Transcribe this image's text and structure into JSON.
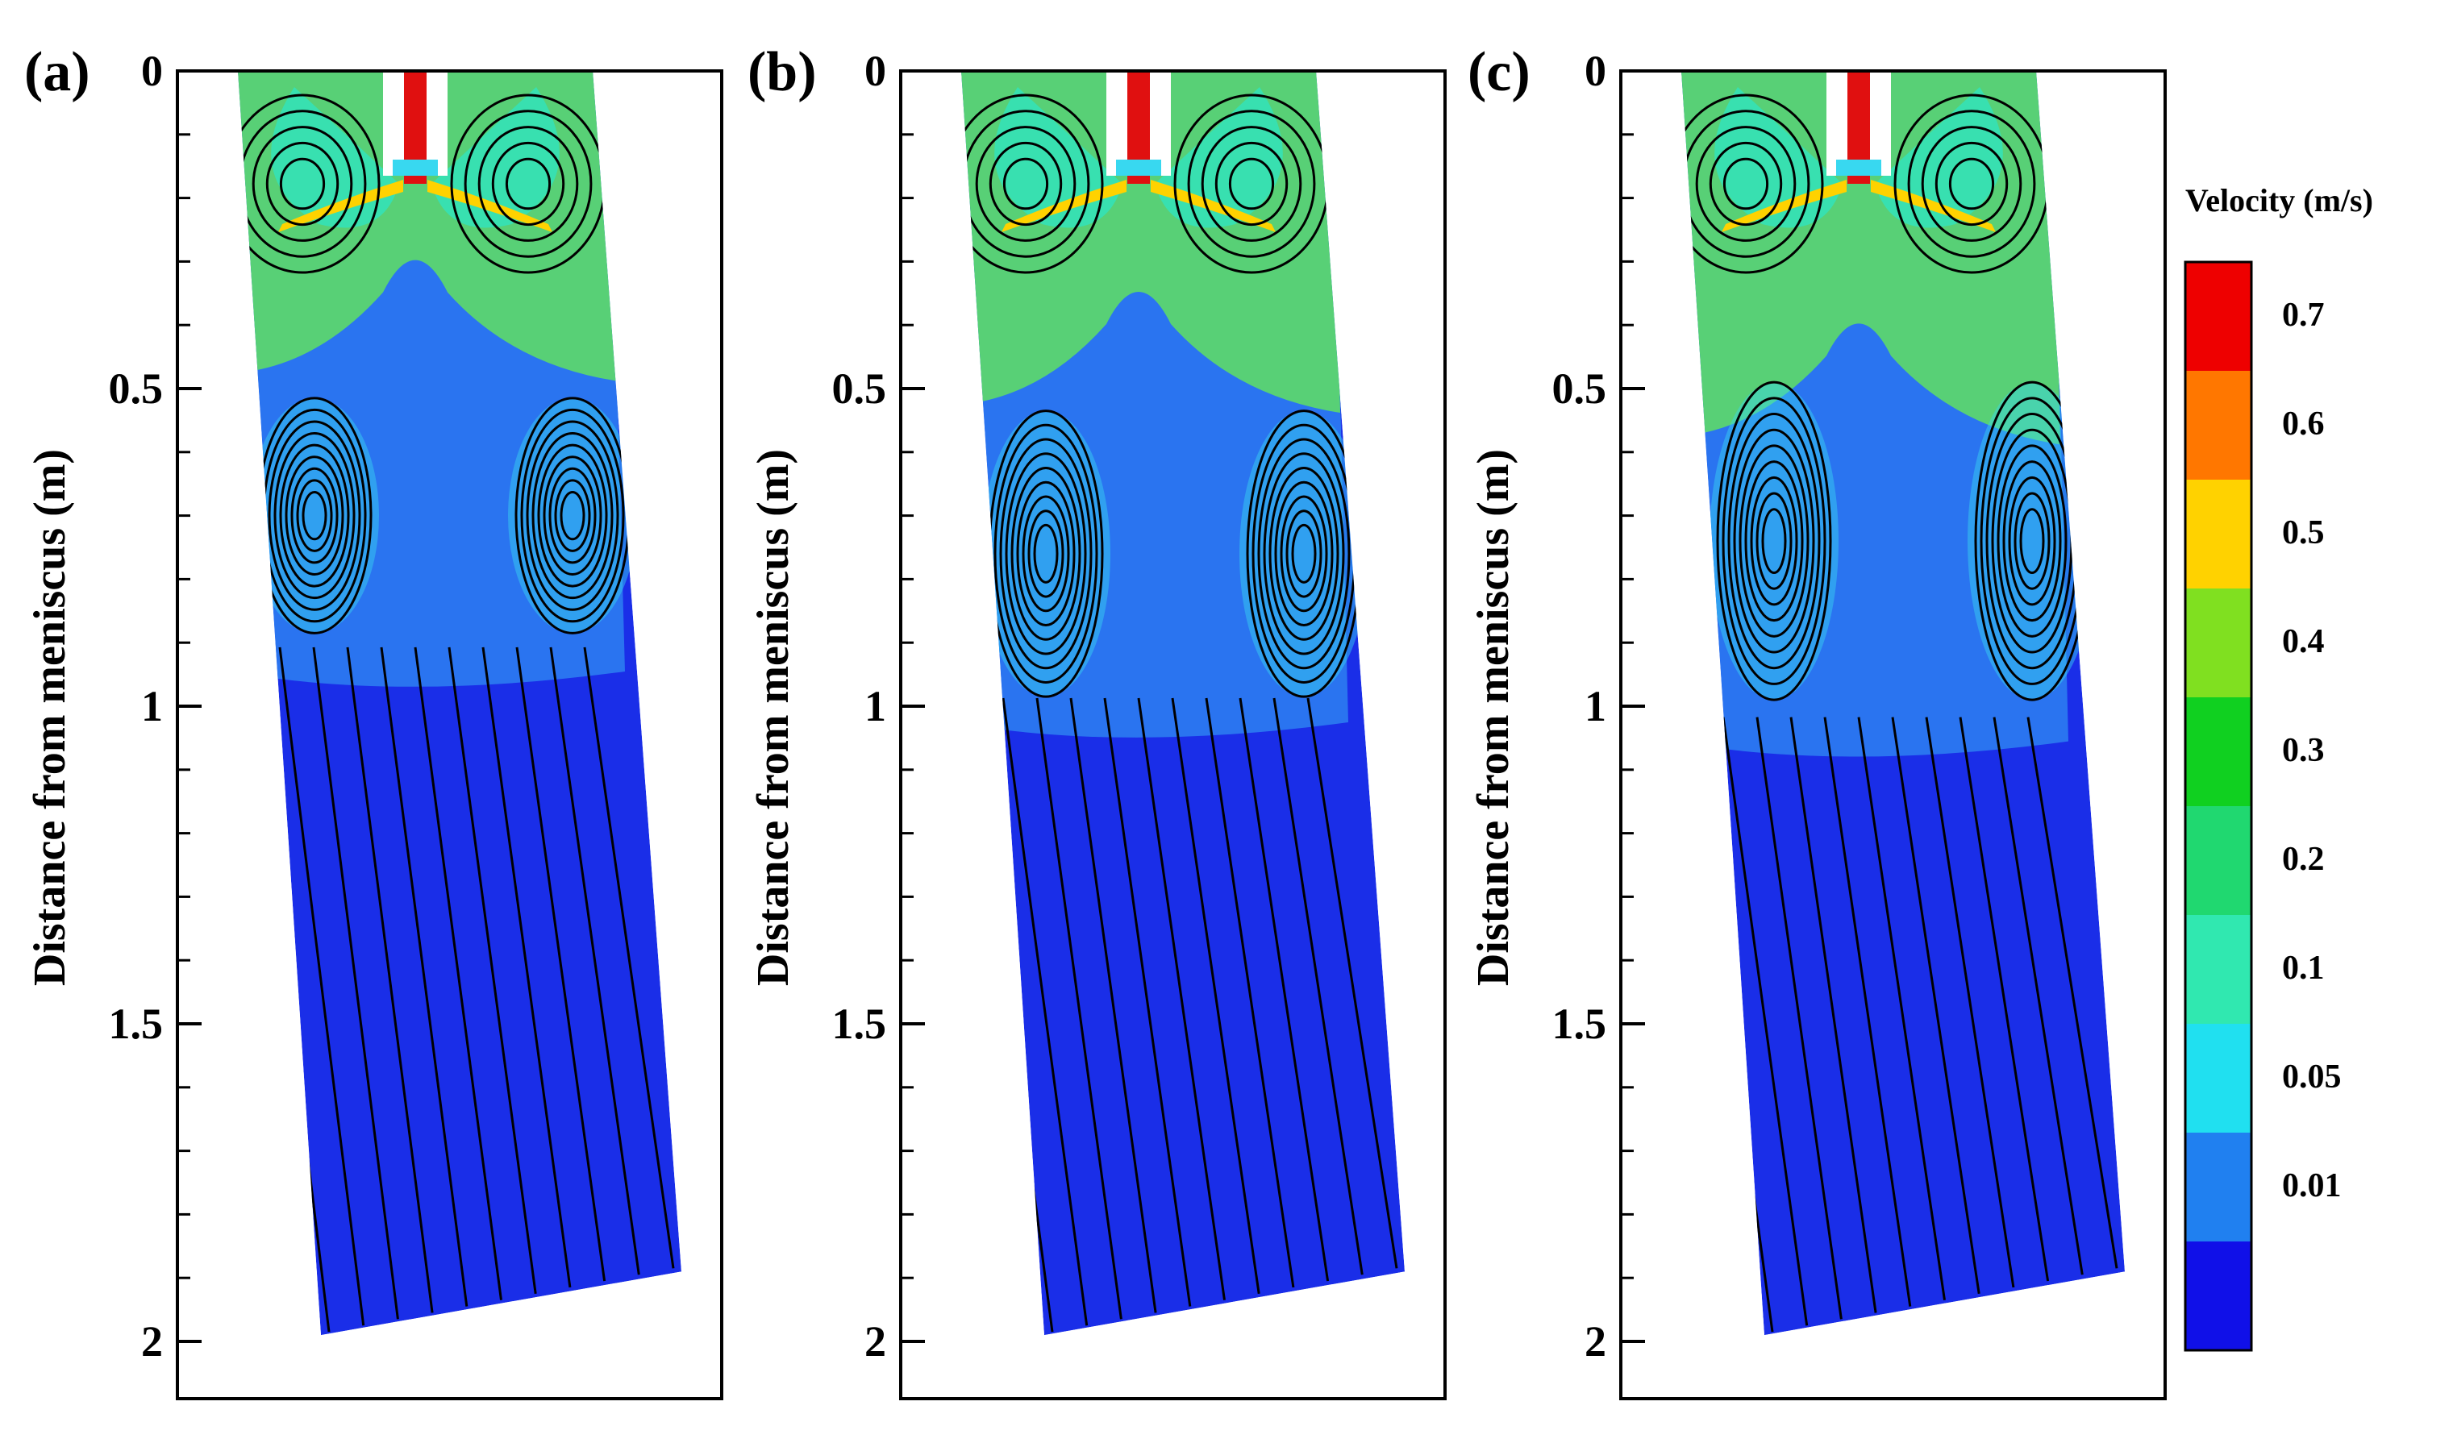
{
  "chart_data": [
    {
      "type": "heatmap",
      "panel_label": "(a)",
      "ylabel": "Distance from meniscus (m)",
      "ylim": [
        0,
        2.1
      ],
      "y_ticks": [
        0,
        0.5,
        1,
        1.5,
        2
      ],
      "y_tick_labels": [
        "0",
        "0.5",
        "1",
        "1.5",
        "2"
      ],
      "upper_recirculation_depth_m": 0.45,
      "lower_vortex_center_depth_m": 0.7,
      "lower_vortex_extent_m": [
        0.55,
        0.92
      ]
    },
    {
      "type": "heatmap",
      "panel_label": "(b)",
      "ylabel": "Distance from meniscus (m)",
      "ylim": [
        0,
        2.1
      ],
      "y_ticks": [
        0,
        0.5,
        1,
        1.5,
        2
      ],
      "y_tick_labels": [
        "0",
        "0.5",
        "1",
        "1.5",
        "2"
      ],
      "upper_recirculation_depth_m": 0.5,
      "lower_vortex_center_depth_m": 0.76,
      "lower_vortex_extent_m": [
        0.55,
        1.0
      ]
    },
    {
      "type": "heatmap",
      "panel_label": "(c)",
      "ylabel": "Distance from meniscus (m)",
      "ylim": [
        0,
        2.1
      ],
      "y_ticks": [
        0,
        0.5,
        1,
        1.5,
        2
      ],
      "y_tick_labels": [
        "0",
        "0.5",
        "1",
        "1.5",
        "2"
      ],
      "upper_recirculation_depth_m": 0.55,
      "lower_vortex_center_depth_m": 0.74,
      "lower_vortex_extent_m": [
        0.53,
        1.03
      ]
    }
  ],
  "colorbar": {
    "title": "Velocity (m/s)",
    "levels": [
      {
        "label": "0.7",
        "color": "#ee0000"
      },
      {
        "label": "0.6",
        "color": "#ff7700"
      },
      {
        "label": "0.5",
        "color": "#ffd200"
      },
      {
        "label": "0.4",
        "color": "#80e020"
      },
      {
        "label": "0.3",
        "color": "#10d020"
      },
      {
        "label": "0.2",
        "color": "#20d870"
      },
      {
        "label": "0.1",
        "color": "#30e8b0"
      },
      {
        "label": "0.05",
        "color": "#20e0f0"
      },
      {
        "label": "0.01",
        "color": "#2080f0"
      },
      {
        "label": "",
        "color": "#1010e8"
      }
    ]
  },
  "colors": {
    "bulk": "#1a2ee8",
    "low": "#2a74f0",
    "cyan": "#38d8f0",
    "teal": "#38e0b0",
    "green": "#60e060",
    "jet_red": "#e01010",
    "streamline": "#000000"
  }
}
